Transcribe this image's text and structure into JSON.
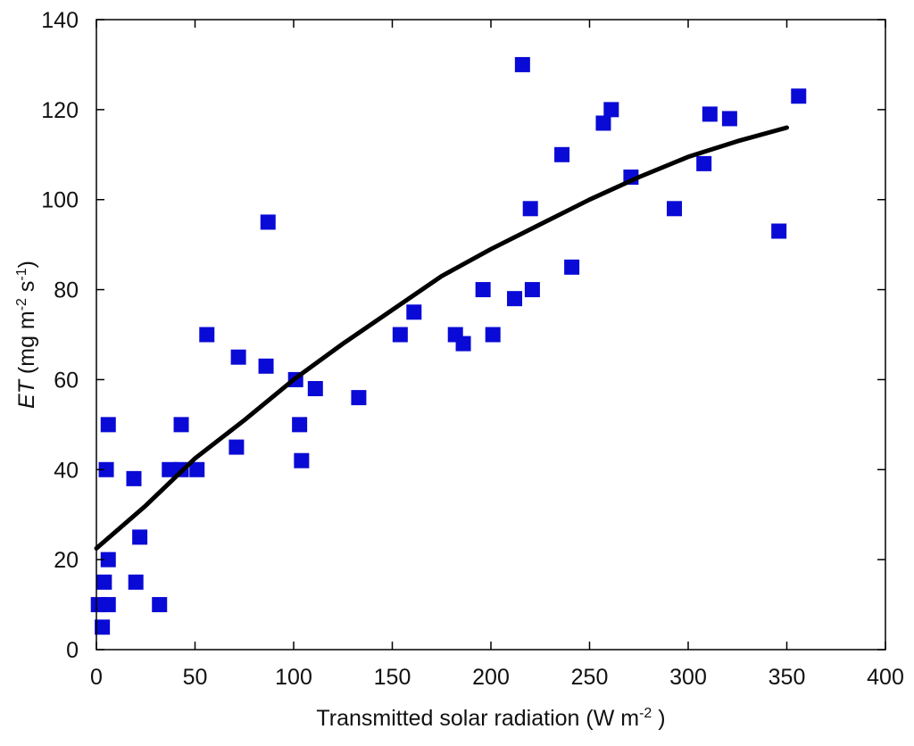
{
  "chart_data": {
    "type": "scatter",
    "title": "",
    "xlabel": {
      "main": "Transmitted solar radiation (W m",
      "sup": "-2",
      "close": " )"
    },
    "ylabel": {
      "var": "ET",
      "main": " (mg m",
      "sup1": "-2",
      "mid": " s",
      "sup2": "-1",
      "close": ")"
    },
    "xlim": [
      0,
      400
    ],
    "ylim": [
      0,
      140
    ],
    "xticks": [
      0,
      50,
      100,
      150,
      200,
      250,
      300,
      350,
      400
    ],
    "yticks": [
      0,
      20,
      40,
      60,
      80,
      100,
      120,
      140
    ],
    "grid": false,
    "legend": "none",
    "marker_color": "#0a0ad6",
    "line_color": "#000000",
    "series": [
      {
        "type": "scatter",
        "points": [
          [
            1,
            10
          ],
          [
            3,
            5
          ],
          [
            4,
            15
          ],
          [
            5,
            40
          ],
          [
            6,
            50
          ],
          [
            6,
            20
          ],
          [
            6,
            10
          ],
          [
            19,
            38
          ],
          [
            20,
            15
          ],
          [
            22,
            25
          ],
          [
            32,
            10
          ],
          [
            37,
            40
          ],
          [
            43,
            40
          ],
          [
            43,
            50
          ],
          [
            51,
            40
          ],
          [
            56,
            70
          ],
          [
            71,
            45
          ],
          [
            72,
            65
          ],
          [
            86,
            63
          ],
          [
            87,
            95
          ],
          [
            101,
            60
          ],
          [
            103,
            50
          ],
          [
            104,
            42
          ],
          [
            111,
            58
          ],
          [
            133,
            56
          ],
          [
            154,
            70
          ],
          [
            161,
            75
          ],
          [
            182,
            70
          ],
          [
            186,
            68
          ],
          [
            196,
            80
          ],
          [
            201,
            70
          ],
          [
            212,
            78
          ],
          [
            216,
            130
          ],
          [
            220,
            98
          ],
          [
            221,
            80
          ],
          [
            236,
            110
          ],
          [
            241,
            85
          ],
          [
            257,
            117
          ],
          [
            261,
            120
          ],
          [
            271,
            105
          ],
          [
            293,
            98
          ],
          [
            308,
            108
          ],
          [
            311,
            119
          ],
          [
            321,
            118
          ],
          [
            346,
            93
          ],
          [
            356,
            123
          ]
        ]
      },
      {
        "type": "line",
        "points": [
          [
            0,
            22.5
          ],
          [
            25,
            32
          ],
          [
            50,
            42.5
          ],
          [
            75,
            51
          ],
          [
            100,
            60
          ],
          [
            125,
            68
          ],
          [
            150,
            75.5
          ],
          [
            175,
            83
          ],
          [
            200,
            89
          ],
          [
            225,
            94.5
          ],
          [
            250,
            100
          ],
          [
            275,
            105
          ],
          [
            300,
            109.5
          ],
          [
            325,
            113
          ],
          [
            350,
            116
          ]
        ]
      }
    ]
  }
}
